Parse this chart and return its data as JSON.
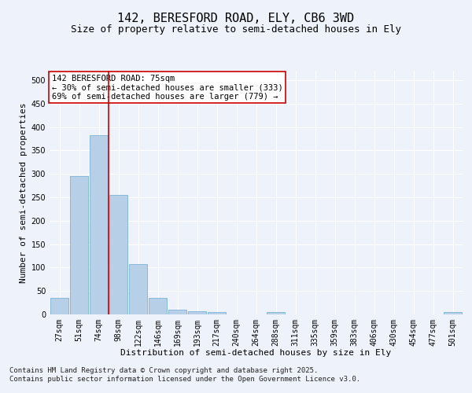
{
  "title_line1": "142, BERESFORD ROAD, ELY, CB6 3WD",
  "title_line2": "Size of property relative to semi-detached houses in Ely",
  "xlabel": "Distribution of semi-detached houses by size in Ely",
  "ylabel": "Number of semi-detached properties",
  "categories": [
    "27sqm",
    "51sqm",
    "74sqm",
    "98sqm",
    "122sqm",
    "146sqm",
    "169sqm",
    "193sqm",
    "217sqm",
    "240sqm",
    "264sqm",
    "288sqm",
    "311sqm",
    "335sqm",
    "359sqm",
    "383sqm",
    "406sqm",
    "430sqm",
    "454sqm",
    "477sqm",
    "501sqm"
  ],
  "values": [
    35,
    295,
    383,
    255,
    108,
    35,
    10,
    6,
    5,
    0,
    0,
    5,
    0,
    0,
    0,
    0,
    0,
    0,
    0,
    0,
    5
  ],
  "bar_color": "#b8cfe8",
  "bar_edge_color": "#6aaad4",
  "vline_color": "#cc0000",
  "vline_x": 2.5,
  "annotation_text": "142 BERESFORD ROAD: 75sqm\n← 30% of semi-detached houses are smaller (333)\n69% of semi-detached houses are larger (779) →",
  "annotation_box_color": "#ffffff",
  "annotation_box_edge_color": "#cc0000",
  "ylim": [
    0,
    520
  ],
  "yticks": [
    0,
    50,
    100,
    150,
    200,
    250,
    300,
    350,
    400,
    450,
    500
  ],
  "background_color": "#eef2fa",
  "grid_color": "#ffffff",
  "footer_text": "Contains HM Land Registry data © Crown copyright and database right 2025.\nContains public sector information licensed under the Open Government Licence v3.0.",
  "title_fontsize": 11,
  "subtitle_fontsize": 9,
  "axis_label_fontsize": 8,
  "tick_fontsize": 7,
  "annotation_fontsize": 7.5,
  "footer_fontsize": 6.5
}
